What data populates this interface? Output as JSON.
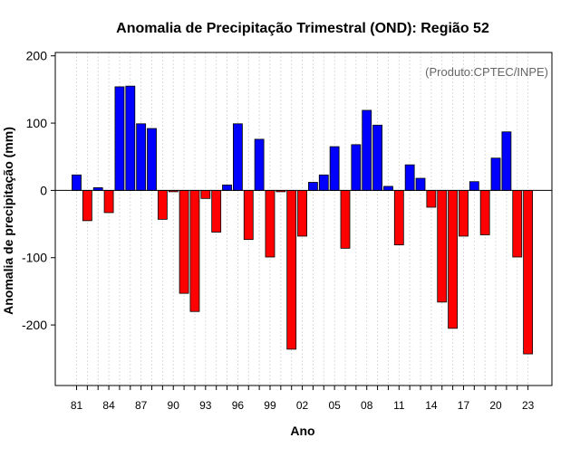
{
  "chart_data": {
    "type": "bar",
    "title": "Anomalia de Precipitação Trimestral (OND): Região 52",
    "xlabel": "Ano",
    "ylabel": "Anomalia de precipitação (mm)",
    "annotation": "(Produto:CPTEC/INPE)",
    "ylim": [
      -290,
      205
    ],
    "yticks": [
      -200,
      -100,
      0,
      100,
      200
    ],
    "grid": true,
    "colors": {
      "positive": "#0000ff",
      "negative": "#ff0000",
      "outline": "#000000",
      "grid": "#d3d3d3"
    },
    "categories": [
      "81",
      "82",
      "83",
      "84",
      "85",
      "86",
      "87",
      "88",
      "89",
      "90",
      "91",
      "92",
      "93",
      "94",
      "95",
      "96",
      "97",
      "98",
      "99",
      "00",
      "01",
      "02",
      "03",
      "04",
      "05",
      "06",
      "07",
      "08",
      "09",
      "10",
      "11",
      "12",
      "13",
      "14",
      "15",
      "16",
      "17",
      "18",
      "19",
      "20",
      "21",
      "22",
      "23"
    ],
    "xtick_labels": [
      "81",
      "84",
      "87",
      "90",
      "93",
      "96",
      "99",
      "02",
      "05",
      "08",
      "11",
      "14",
      "17",
      "20",
      "23"
    ],
    "values": [
      23,
      -45,
      4,
      -33,
      154,
      155,
      99,
      92,
      -43,
      -2,
      -153,
      -180,
      -12,
      -62,
      8,
      99,
      -73,
      76,
      -99,
      -2,
      -236,
      -68,
      12,
      23,
      65,
      -86,
      68,
      119,
      97,
      6,
      -81,
      38,
      18,
      -25,
      -166,
      -205,
      -68,
      13,
      -66,
      48,
      87,
      -99,
      -243
    ]
  }
}
